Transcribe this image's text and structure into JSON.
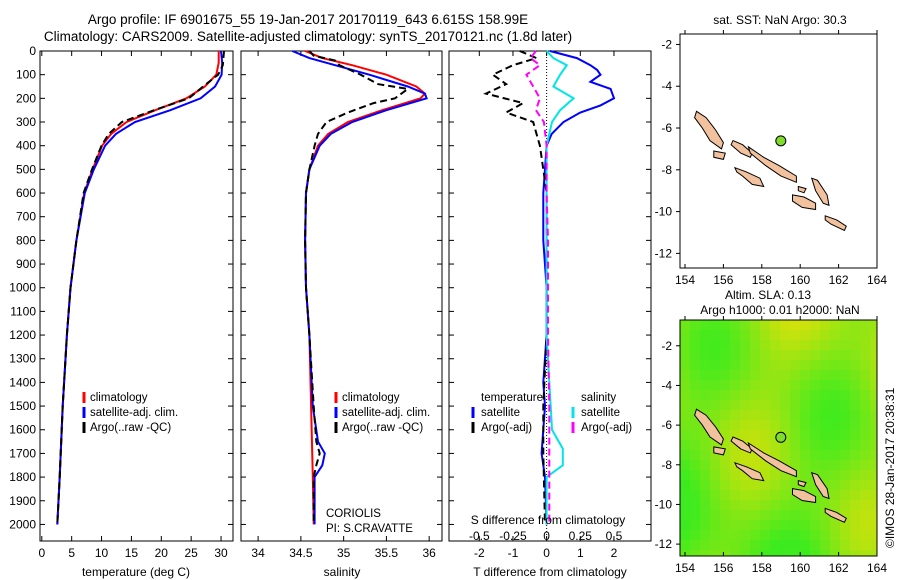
{
  "header": {
    "line1": "Argo profile: IF 6901675_55 19-Jan-2017 20170119_643 6.615S 158.99E",
    "line2": "Climatology: CARS2009. Satellite-adjusted climatology: synTS_20170121.nc (1.8d later)"
  },
  "colors": {
    "clim": "#ff0000",
    "sat": "#0000ff",
    "argo": "#000000",
    "sal_sat": "#00e5e5",
    "sal_argo": "#ff00ff",
    "land": "#f2c29e",
    "dot": "#7fdc2a"
  },
  "chart_data": [
    {
      "type": "line",
      "id": "temperature",
      "xlabel": "temperature (deg C)",
      "ylabel": "",
      "xlim": [
        -0.3,
        32
      ],
      "ylim": [
        2070,
        0
      ],
      "xticks": [
        0,
        5,
        10,
        15,
        20,
        25,
        30
      ],
      "yticks": [
        0,
        100,
        200,
        300,
        400,
        500,
        600,
        700,
        800,
        900,
        1000,
        1100,
        1200,
        1300,
        1400,
        1500,
        1600,
        1700,
        1800,
        1900,
        2000
      ],
      "legend": [
        "climatology",
        "satellite-adj. clim.",
        "Argo(..raw -QC)"
      ],
      "series": [
        {
          "name": "climatology",
          "color": "#ff0000",
          "dash": false,
          "depth": [
            0,
            50,
            100,
            150,
            200,
            250,
            300,
            350,
            400,
            500,
            600,
            800,
            1000,
            1200,
            1500,
            1800,
            2000
          ],
          "values": [
            29.6,
            29.6,
            29.2,
            27.3,
            24.2,
            19,
            14.2,
            11.6,
            10.1,
            8.5,
            7.1,
            5.8,
            4.8,
            4.2,
            3.5,
            3.0,
            2.6
          ]
        },
        {
          "name": "satellite-adj. clim.",
          "color": "#0000ff",
          "dash": false,
          "depth": [
            0,
            50,
            100,
            150,
            200,
            250,
            300,
            350,
            400,
            500,
            600,
            800,
            1000,
            1200,
            1500,
            1800,
            2000
          ],
          "values": [
            30.0,
            30.2,
            30.1,
            29.0,
            26.6,
            21.5,
            15.6,
            12.4,
            10.6,
            8.7,
            7.2,
            5.8,
            4.8,
            4.2,
            3.5,
            3.0,
            2.6
          ]
        },
        {
          "name": "Argo(..raw -QC)",
          "color": "#000000",
          "dash": true,
          "depth": [
            0,
            30,
            60,
            100,
            150,
            200,
            250,
            300,
            350,
            400,
            500,
            600,
            800,
            1000,
            1200,
            1500,
            1800,
            2000
          ],
          "values": [
            30.5,
            30.4,
            30.3,
            29.5,
            27.0,
            24.6,
            18.8,
            13.4,
            11.2,
            10.0,
            8.4,
            7.0,
            5.8,
            4.8,
            4.2,
            3.5,
            3.0,
            2.6
          ]
        }
      ]
    },
    {
      "type": "line",
      "id": "salinity",
      "xlabel": "salinity",
      "ylabel": "",
      "xlim": [
        33.8,
        36.15
      ],
      "ylim": [
        2070,
        0
      ],
      "xticks": [
        34,
        34.5,
        35,
        35.5,
        36
      ],
      "legend": [
        "climatology",
        "satellite-adj. clim.",
        "Argo(..raw -QC)"
      ],
      "annotation": [
        "CORIOLIS",
        "PI: S.CRAVATTE"
      ],
      "series": [
        {
          "name": "climatology",
          "color": "#ff0000",
          "dash": false,
          "depth": [
            0,
            30,
            60,
            100,
            150,
            180,
            200,
            250,
            300,
            350,
            400,
            500,
            600,
            800,
            1000,
            1200,
            1500,
            1800,
            2000
          ],
          "values": [
            34.55,
            34.75,
            35.1,
            35.5,
            35.85,
            35.95,
            35.9,
            35.45,
            35.05,
            34.82,
            34.7,
            34.6,
            34.56,
            34.55,
            34.56,
            34.6,
            34.62,
            34.64,
            34.65
          ]
        },
        {
          "name": "satellite-adj. clim.",
          "color": "#0000ff",
          "dash": false,
          "depth": [
            0,
            30,
            60,
            100,
            150,
            180,
            200,
            250,
            300,
            350,
            400,
            500,
            600,
            800,
            1000,
            1200,
            1500,
            1650,
            1700,
            1750,
            1800,
            2000
          ],
          "values": [
            34.4,
            34.6,
            34.9,
            35.3,
            35.75,
            35.95,
            35.97,
            35.5,
            35.1,
            34.85,
            34.72,
            34.6,
            34.56,
            34.55,
            34.56,
            34.6,
            34.64,
            34.7,
            34.78,
            34.75,
            34.66,
            34.66
          ]
        },
        {
          "name": "Argo(..raw -QC)",
          "color": "#000000",
          "dash": true,
          "depth": [
            0,
            20,
            40,
            60,
            100,
            140,
            160,
            200,
            220,
            260,
            300,
            350,
            400,
            500,
            600,
            800,
            1000,
            1200,
            1500,
            1650,
            1700,
            1750,
            1800,
            2000
          ],
          "values": [
            34.6,
            34.65,
            34.9,
            34.95,
            35.2,
            35.4,
            35.75,
            35.6,
            35.35,
            35.05,
            34.8,
            34.7,
            34.66,
            34.6,
            34.56,
            34.55,
            34.56,
            34.6,
            34.65,
            34.68,
            34.72,
            34.68,
            34.65,
            34.65
          ]
        }
      ]
    },
    {
      "type": "line",
      "id": "difference",
      "xlabel": "T difference from climatology",
      "x2label": "S difference from climatology",
      "xlim": [
        -2.9,
        3.1
      ],
      "ylim": [
        2070,
        0
      ],
      "xticks": [
        -2,
        -1,
        0,
        1,
        2
      ],
      "x2ticks": [
        -0.5,
        -0.25,
        0,
        0.25,
        0.5
      ],
      "x2ticklabels": [
        "-0.5",
        "-0.25",
        "0",
        "0.25",
        "0.5"
      ],
      "legend_titles": [
        "temperature",
        "salinity"
      ],
      "legend": [
        "satellite",
        "Argo(-adj)",
        "satellite",
        "Argo(-adj)"
      ],
      "series": [
        {
          "name": "T satellite",
          "color": "#0000ff",
          "dash": false,
          "scale": 1,
          "depth": [
            0,
            30,
            60,
            80,
            100,
            130,
            160,
            200,
            230,
            260,
            300,
            350,
            400,
            500,
            600,
            800,
            1000,
            1200,
            1400,
            1500,
            1600,
            1700,
            1800,
            2000
          ],
          "values": [
            0.1,
            0.9,
            1.3,
            1.5,
            1.6,
            1.3,
            1.9,
            2.0,
            1.6,
            1.0,
            0.5,
            0.15,
            0.0,
            -0.05,
            -0.1,
            -0.1,
            0.0,
            0.0,
            -0.1,
            -0.05,
            -0.1,
            -0.15,
            -0.05,
            0.0
          ]
        },
        {
          "name": "T Argo(-adj)",
          "color": "#000000",
          "dash": true,
          "scale": 1,
          "depth": [
            0,
            30,
            60,
            100,
            140,
            180,
            220,
            260,
            300,
            350,
            400,
            500,
            600,
            800,
            1000,
            1200,
            1500,
            1700,
            2000
          ],
          "values": [
            -0.8,
            -0.3,
            -1.0,
            -1.6,
            -1.2,
            -1.8,
            -0.7,
            -1.2,
            -0.4,
            -0.3,
            -0.2,
            -0.1,
            0.0,
            0.0,
            0.0,
            0.0,
            -0.1,
            -0.1,
            -0.05
          ]
        },
        {
          "name": "S satellite",
          "color": "#00e5e5",
          "dash": false,
          "scale": 4,
          "depth": [
            0,
            30,
            60,
            100,
            150,
            200,
            250,
            300,
            350,
            400,
            500,
            600,
            800,
            1000,
            1200,
            1400,
            1500,
            1600,
            1680,
            1750,
            1800,
            2000
          ],
          "values": [
            0.0,
            0.05,
            0.15,
            0.1,
            0.05,
            0.2,
            0.1,
            0.04,
            0.02,
            0.0,
            0.0,
            0.0,
            0.0,
            0.0,
            0.0,
            0.02,
            0.03,
            0.04,
            0.12,
            0.12,
            0.0,
            0.0
          ]
        },
        {
          "name": "S Argo(-adj)",
          "color": "#ff00ff",
          "dash": true,
          "scale": 4,
          "depth": [
            0,
            30,
            60,
            100,
            150,
            200,
            250,
            300,
            400,
            500,
            600,
            800,
            1000,
            1200,
            1500,
            1800,
            2000
          ],
          "values": [
            -0.08,
            -0.12,
            -0.05,
            -0.15,
            -0.1,
            -0.05,
            -0.08,
            -0.02,
            0.0,
            0.0,
            0.0,
            0.01,
            0.01,
            0.01,
            0.02,
            0.02,
            0.02
          ]
        }
      ]
    }
  ],
  "maps": [
    {
      "title": "sat. SST: NaN Argo: 30.3",
      "lonlim": [
        154,
        164
      ],
      "latlim": [
        -12.7,
        -1.5
      ],
      "lonticks": [
        154,
        156,
        158,
        160,
        162,
        164
      ],
      "latticks": [
        -2,
        -4,
        -6,
        -8,
        -10,
        -12
      ],
      "background": "#ffffff"
    },
    {
      "title1": "Altim. SLA: 0.13",
      "title2": "Argo h1000: 0.01 h2000: NaN",
      "lonlim": [
        154,
        164
      ],
      "latlim": [
        -12.6,
        -0.7
      ],
      "lonticks": [
        154,
        156,
        158,
        160,
        162,
        164
      ],
      "latticks": [
        -2,
        -4,
        -6,
        -8,
        -10,
        -12
      ],
      "background": "#b6e81e"
    }
  ],
  "argo_position": {
    "lon": 158.99,
    "lat": -6.615
  },
  "islands": [
    [
      [
        154.6,
        -5.2
      ],
      [
        155.1,
        -5.5
      ],
      [
        155.6,
        -6.1
      ],
      [
        156.0,
        -6.7
      ],
      [
        155.9,
        -7.0
      ],
      [
        155.3,
        -6.6
      ],
      [
        154.9,
        -6.0
      ],
      [
        154.5,
        -5.5
      ]
    ],
    [
      [
        156.5,
        -6.6
      ],
      [
        157.0,
        -6.8
      ],
      [
        157.5,
        -7.2
      ],
      [
        157.4,
        -7.4
      ],
      [
        156.9,
        -7.2
      ],
      [
        156.4,
        -6.8
      ]
    ],
    [
      [
        157.3,
        -6.9
      ],
      [
        158.1,
        -7.4
      ],
      [
        158.9,
        -7.8
      ],
      [
        159.8,
        -8.3
      ],
      [
        159.8,
        -8.6
      ],
      [
        159.0,
        -8.3
      ],
      [
        158.2,
        -7.8
      ],
      [
        157.4,
        -7.2
      ]
    ],
    [
      [
        156.6,
        -7.9
      ],
      [
        157.2,
        -8.1
      ],
      [
        157.9,
        -8.4
      ],
      [
        158.1,
        -8.8
      ],
      [
        157.5,
        -8.7
      ],
      [
        157.0,
        -8.3
      ],
      [
        156.7,
        -8.1
      ]
    ],
    [
      [
        159.6,
        -9.2
      ],
      [
        160.2,
        -9.3
      ],
      [
        160.8,
        -9.6
      ],
      [
        160.8,
        -9.9
      ],
      [
        160.1,
        -9.8
      ],
      [
        159.6,
        -9.5
      ]
    ],
    [
      [
        160.6,
        -8.4
      ],
      [
        160.9,
        -8.5
      ],
      [
        161.4,
        -9.2
      ],
      [
        161.5,
        -9.7
      ],
      [
        161.2,
        -9.6
      ],
      [
        160.8,
        -9.0
      ]
    ],
    [
      [
        161.3,
        -10.2
      ],
      [
        161.9,
        -10.4
      ],
      [
        162.4,
        -10.7
      ],
      [
        162.3,
        -10.9
      ],
      [
        161.6,
        -10.6
      ],
      [
        161.3,
        -10.4
      ]
    ],
    [
      [
        155.5,
        -7.1
      ],
      [
        156.1,
        -7.2
      ],
      [
        156.0,
        -7.5
      ],
      [
        155.5,
        -7.4
      ]
    ],
    [
      [
        159.9,
        -8.8
      ],
      [
        160.3,
        -8.9
      ],
      [
        160.2,
        -9.1
      ],
      [
        159.9,
        -9.0
      ]
    ]
  ],
  "footer": {
    "credit": "©IMOS 28-Jan-2017 20:38:31"
  }
}
